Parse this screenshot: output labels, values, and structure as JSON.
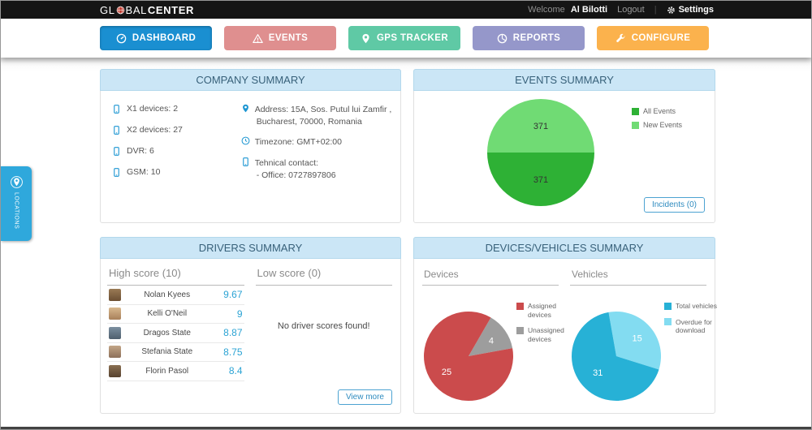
{
  "topbar": {
    "logo_gl": "GL",
    "logo_bal": "BAL",
    "logo_center": "CENTER",
    "welcome_prefix": "Welcome",
    "username": "Al Bilotti",
    "logout": "Logout",
    "separator": "|",
    "settings": "Settings"
  },
  "nav": {
    "tabs": [
      {
        "label": "DASHBOARD",
        "color": "#1a8fd1",
        "active": true
      },
      {
        "label": "EVENTS",
        "color": "#df8f8f",
        "active": false
      },
      {
        "label": "GPS TRACKER",
        "color": "#5fc9a5",
        "active": false
      },
      {
        "label": "REPORTS",
        "color": "#9597ca",
        "active": false
      },
      {
        "label": "CONFIGURE",
        "color": "#fbb24d",
        "active": false
      }
    ]
  },
  "locations_tab": {
    "label": "LOCATIONS"
  },
  "company_summary": {
    "title": "COMPANY SUMMARY",
    "devices": [
      {
        "label": "X1 devices: 2"
      },
      {
        "label": "X2 devices: 27"
      },
      {
        "label": "DVR: 6"
      },
      {
        "label": "GSM: 10"
      }
    ],
    "address_line1": "Address: 15A, Sos. Putul lui Zamfir ,",
    "address_line2": "Bucharest, 70000, Romania",
    "timezone": "Timezone: GMT+02:00",
    "contact_label": "Tehnical contact:",
    "contact_office": "- Office: 0727897806"
  },
  "events_summary": {
    "title": "EVENTS SUMMARY",
    "incidents_button": "Incidents (0)"
  },
  "drivers_summary": {
    "title": "DRIVERS SUMMARY",
    "high_header": "High score (10)",
    "low_header": "Low score (0)",
    "no_scores_text": "No driver scores found!",
    "view_more_button": "View more",
    "rows": [
      {
        "name": "Nolan Kyees",
        "score": "9.67"
      },
      {
        "name": "Kelli O'Neil",
        "score": "9"
      },
      {
        "name": "Dragos State",
        "score": "8.87"
      },
      {
        "name": "Stefania State",
        "score": "8.75"
      },
      {
        "name": "Florin Pasol",
        "score": "8.4"
      }
    ]
  },
  "devices_vehicles": {
    "title": "DEVICES/VEHICLES SUMMARY",
    "devices_header": "Devices",
    "vehicles_header": "Vehicles"
  },
  "chart_data": [
    {
      "id": "events_pie",
      "type": "pie",
      "title": "EVENTS SUMMARY",
      "radius": 66,
      "start_angle": 270,
      "legend_position": "right",
      "slices": [
        {
          "label": "New Events",
          "value": 371,
          "color": "#70db74",
          "text_color": "#333333",
          "label_r": 0.5
        },
        {
          "label": "All Events",
          "value": 371,
          "color": "#2eb135",
          "text_color": "#333333",
          "label_r": 0.5
        }
      ],
      "legend": [
        {
          "label": "All Events",
          "color": "#2eb135"
        },
        {
          "label": "New Events",
          "color": "#70db74"
        }
      ]
    },
    {
      "id": "devices_pie",
      "type": "pie",
      "title": "Devices",
      "radius": 55,
      "start_angle": 30,
      "legend_position": "right",
      "slices": [
        {
          "label": "Unassigned devices",
          "value": 4,
          "color": "#9d9d9d",
          "text_color": "#ffffff",
          "label_r": 0.62
        },
        {
          "label": "Assigned devices",
          "value": 25,
          "color": "#cb4b4c",
          "text_color": "#ffffff",
          "label_r": 0.6
        }
      ],
      "legend": [
        {
          "label": "Assigned devices",
          "color": "#cb4b4c"
        },
        {
          "label": "Unassigned devices",
          "color": "#9d9d9d"
        }
      ]
    },
    {
      "id": "vehicles_pie",
      "type": "pie",
      "title": "Vehicles",
      "radius": 55,
      "start_angle": 350,
      "legend_position": "right",
      "slices": [
        {
          "label": "Overdue for download",
          "value": 15,
          "color": "#83dcf1",
          "text_color": "#ffffff",
          "label_r": 0.62
        },
        {
          "label": "Total vehicles",
          "value": 31,
          "color": "#27b1d6",
          "text_color": "#ffffff",
          "label_r": 0.55
        }
      ],
      "legend": [
        {
          "label": "Total vehicles",
          "color": "#27b1d6"
        },
        {
          "label": "Overdue for download",
          "color": "#83dcf1"
        }
      ]
    }
  ]
}
